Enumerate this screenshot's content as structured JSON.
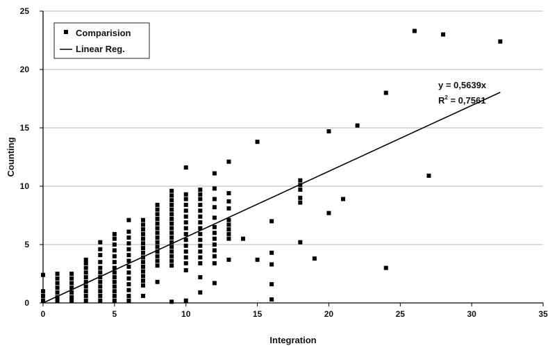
{
  "chart_data": {
    "type": "scatter",
    "xlabel": "Integration",
    "ylabel": "Counting",
    "xlim": [
      0,
      35
    ],
    "ylim": [
      0,
      25
    ],
    "x_ticks": [
      "0",
      "5",
      "10",
      "15",
      "20",
      "25",
      "30",
      "35"
    ],
    "y_ticks": [
      "0",
      "5",
      "10",
      "15",
      "20",
      "25"
    ],
    "grid": "horizontal",
    "legend_position": "top-left",
    "legend": {
      "scatter_label": "Comparision",
      "line_label": "Linear Reg."
    },
    "annotation": {
      "equation": "y = 0,5639x",
      "r2_prefix": "R",
      "r2_sup": "2",
      "r2_value": " = 0,7561"
    },
    "series": [
      {
        "name": "Comparision",
        "kind": "scatter",
        "marker": "square",
        "points": [
          [
            0,
            0.2
          ],
          [
            0,
            0.6
          ],
          [
            0,
            1.0
          ],
          [
            0,
            2.4
          ],
          [
            1,
            0.2
          ],
          [
            1,
            0.5
          ],
          [
            1,
            0.9
          ],
          [
            1,
            1.3
          ],
          [
            1,
            1.7
          ],
          [
            1,
            2.1
          ],
          [
            1,
            2.5
          ],
          [
            2,
            0.2
          ],
          [
            2,
            0.5
          ],
          [
            2,
            0.9
          ],
          [
            2,
            1.3
          ],
          [
            2,
            1.7
          ],
          [
            2,
            2.1
          ],
          [
            2,
            2.5
          ],
          [
            3,
            0.2
          ],
          [
            3,
            0.6
          ],
          [
            3,
            1.0
          ],
          [
            3,
            1.4
          ],
          [
            3,
            1.8
          ],
          [
            3,
            2.2
          ],
          [
            3,
            2.6
          ],
          [
            3,
            3.0
          ],
          [
            3,
            3.4
          ],
          [
            3,
            3.7
          ],
          [
            4,
            0.2
          ],
          [
            4,
            0.6
          ],
          [
            4,
            1.0
          ],
          [
            4,
            1.4
          ],
          [
            4,
            1.8
          ],
          [
            4,
            2.2
          ],
          [
            4,
            2.6
          ],
          [
            4,
            3.0
          ],
          [
            4,
            3.5
          ],
          [
            4,
            4.1
          ],
          [
            4,
            4.6
          ],
          [
            4,
            5.2
          ],
          [
            5,
            0.2
          ],
          [
            5,
            0.6
          ],
          [
            5,
            1.0
          ],
          [
            5,
            1.4
          ],
          [
            5,
            1.8
          ],
          [
            5,
            2.2
          ],
          [
            5,
            2.6
          ],
          [
            5,
            3.0
          ],
          [
            5,
            3.5
          ],
          [
            5,
            4.0
          ],
          [
            5,
            4.5
          ],
          [
            5,
            5.0
          ],
          [
            5,
            5.5
          ],
          [
            5,
            5.9
          ],
          [
            6,
            0.2
          ],
          [
            6,
            0.6
          ],
          [
            6,
            1.1
          ],
          [
            6,
            1.6
          ],
          [
            6,
            2.1
          ],
          [
            6,
            2.6
          ],
          [
            6,
            3.1
          ],
          [
            6,
            3.6
          ],
          [
            6,
            4.1
          ],
          [
            6,
            4.6
          ],
          [
            6,
            5.1
          ],
          [
            6,
            5.6
          ],
          [
            6,
            6.1
          ],
          [
            6,
            7.1
          ],
          [
            7,
            0.6
          ],
          [
            7,
            1.5
          ],
          [
            7,
            1.9
          ],
          [
            7,
            2.3
          ],
          [
            7,
            2.7
          ],
          [
            7,
            3.1
          ],
          [
            7,
            3.5
          ],
          [
            7,
            3.9
          ],
          [
            7,
            4.3
          ],
          [
            7,
            4.7
          ],
          [
            7,
            5.1
          ],
          [
            7,
            5.5
          ],
          [
            7,
            5.9
          ],
          [
            7,
            6.3
          ],
          [
            7,
            6.7
          ],
          [
            7,
            7.1
          ],
          [
            8,
            1.8
          ],
          [
            8,
            3.2
          ],
          [
            8,
            3.6
          ],
          [
            8,
            4.0
          ],
          [
            8,
            4.4
          ],
          [
            8,
            4.8
          ],
          [
            8,
            5.2
          ],
          [
            8,
            5.6
          ],
          [
            8,
            6.0
          ],
          [
            8,
            6.4
          ],
          [
            8,
            6.8
          ],
          [
            8,
            7.2
          ],
          [
            8,
            7.6
          ],
          [
            8,
            8.0
          ],
          [
            8,
            8.4
          ],
          [
            9,
            0.1
          ],
          [
            9,
            3.2
          ],
          [
            9,
            3.6
          ],
          [
            9,
            4.0
          ],
          [
            9,
            4.4
          ],
          [
            9,
            4.8
          ],
          [
            9,
            5.2
          ],
          [
            9,
            5.6
          ],
          [
            9,
            6.0
          ],
          [
            9,
            6.4
          ],
          [
            9,
            6.8
          ],
          [
            9,
            7.2
          ],
          [
            9,
            7.6
          ],
          [
            9,
            8.0
          ],
          [
            9,
            8.4
          ],
          [
            9,
            8.8
          ],
          [
            9,
            9.2
          ],
          [
            9,
            9.6
          ],
          [
            10,
            0.2
          ],
          [
            10,
            2.8
          ],
          [
            10,
            3.4
          ],
          [
            10,
            3.9
          ],
          [
            10,
            4.4
          ],
          [
            10,
            4.9
          ],
          [
            10,
            5.4
          ],
          [
            10,
            5.9
          ],
          [
            10,
            6.4
          ],
          [
            10,
            6.9
          ],
          [
            10,
            7.4
          ],
          [
            10,
            7.9
          ],
          [
            10,
            8.4
          ],
          [
            10,
            8.9
          ],
          [
            10,
            9.3
          ],
          [
            10,
            11.6
          ],
          [
            11,
            0.9
          ],
          [
            11,
            2.2
          ],
          [
            11,
            3.4
          ],
          [
            11,
            3.9
          ],
          [
            11,
            4.4
          ],
          [
            11,
            4.9
          ],
          [
            11,
            5.4
          ],
          [
            11,
            5.9
          ],
          [
            11,
            6.4
          ],
          [
            11,
            6.9
          ],
          [
            11,
            7.4
          ],
          [
            11,
            7.9
          ],
          [
            11,
            8.4
          ],
          [
            11,
            8.9
          ],
          [
            11,
            9.3
          ],
          [
            11,
            9.7
          ],
          [
            12,
            1.7
          ],
          [
            12,
            3.4
          ],
          [
            12,
            4.0
          ],
          [
            12,
            4.5
          ],
          [
            12,
            5.0
          ],
          [
            12,
            5.5
          ],
          [
            12,
            6.0
          ],
          [
            12,
            6.5
          ],
          [
            12,
            7.3
          ],
          [
            12,
            8.2
          ],
          [
            12,
            8.9
          ],
          [
            12,
            9.8
          ],
          [
            12,
            11.1
          ],
          [
            13,
            3.7
          ],
          [
            13,
            5.5
          ],
          [
            13,
            5.9
          ],
          [
            13,
            6.3
          ],
          [
            13,
            6.7
          ],
          [
            13,
            7.1
          ],
          [
            13,
            8.1
          ],
          [
            13,
            8.7
          ],
          [
            13,
            9.4
          ],
          [
            13,
            12.1
          ],
          [
            14,
            5.5
          ],
          [
            15,
            3.7
          ],
          [
            15,
            13.8
          ],
          [
            16,
            0.3
          ],
          [
            16,
            1.6
          ],
          [
            16,
            3.3
          ],
          [
            16,
            4.3
          ],
          [
            16,
            7.0
          ],
          [
            18,
            5.2
          ],
          [
            18,
            8.6
          ],
          [
            18,
            9.0
          ],
          [
            18,
            9.7
          ],
          [
            18,
            10.1
          ],
          [
            18,
            10.5
          ],
          [
            19,
            3.8
          ],
          [
            20,
            7.7
          ],
          [
            20,
            14.7
          ],
          [
            21,
            8.9
          ],
          [
            22,
            15.2
          ],
          [
            24,
            3.0
          ],
          [
            24,
            18.0
          ],
          [
            26,
            23.3
          ],
          [
            27,
            10.9
          ],
          [
            28,
            23.0
          ],
          [
            32,
            22.4
          ]
        ]
      },
      {
        "name": "Linear Reg.",
        "kind": "line",
        "slope": 0.5639,
        "x_range": [
          0,
          32
        ]
      }
    ]
  }
}
